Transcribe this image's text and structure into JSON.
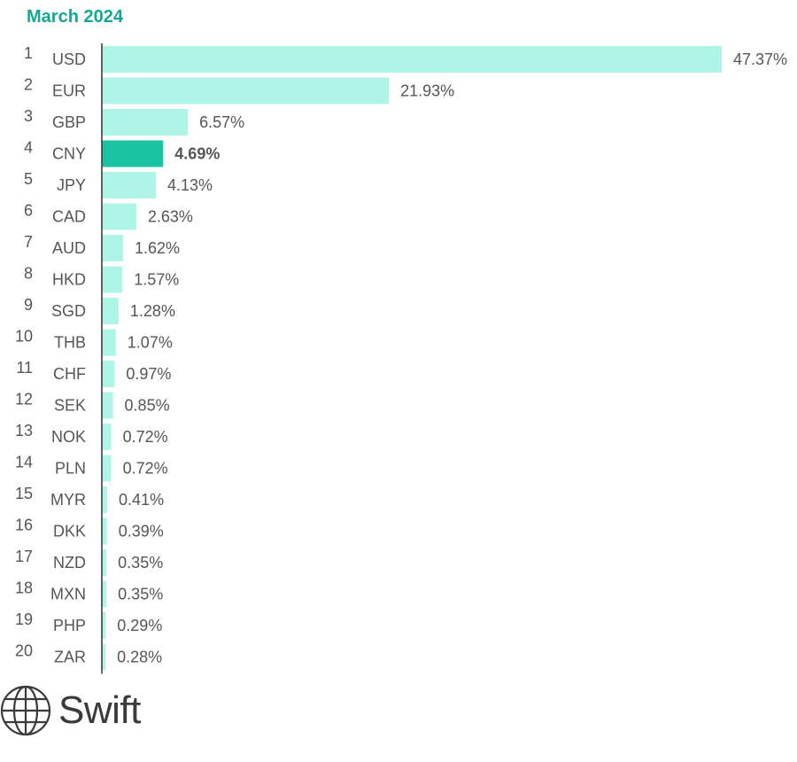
{
  "chart_data": {
    "type": "bar",
    "orientation": "horizontal",
    "title": "March 2024",
    "ranks": [
      1,
      2,
      3,
      4,
      5,
      6,
      7,
      8,
      9,
      10,
      11,
      12,
      13,
      14,
      15,
      16,
      17,
      18,
      19,
      20
    ],
    "categories": [
      "USD",
      "EUR",
      "GBP",
      "CNY",
      "JPY",
      "CAD",
      "AUD",
      "HKD",
      "SGD",
      "THB",
      "CHF",
      "SEK",
      "NOK",
      "PLN",
      "MYR",
      "DKK",
      "NZD",
      "MXN",
      "PHP",
      "ZAR"
    ],
    "values": [
      47.37,
      21.93,
      6.57,
      4.69,
      4.13,
      2.63,
      1.62,
      1.57,
      1.28,
      1.07,
      0.97,
      0.85,
      0.72,
      0.72,
      0.41,
      0.39,
      0.35,
      0.35,
      0.29,
      0.28
    ],
    "value_labels": [
      "47.37%",
      "21.93%",
      "6.57%",
      "4.69%",
      "4.13%",
      "2.63%",
      "1.62%",
      "1.57%",
      "1.28%",
      "1.07%",
      "0.97%",
      "0.85%",
      "0.72%",
      "0.72%",
      "0.41%",
      "0.39%",
      "0.35%",
      "0.35%",
      "0.29%",
      "0.28%"
    ],
    "highlight": "CNY",
    "xlim": [
      0,
      47.37
    ],
    "grid": false
  },
  "colors": {
    "title": "#14a890",
    "bar": "#aef5e8",
    "bar_highlight": "#19c4a2",
    "label": "#555555",
    "axis": "#333333"
  },
  "logo": {
    "text": "Swift",
    "icon": "globe-icon"
  }
}
